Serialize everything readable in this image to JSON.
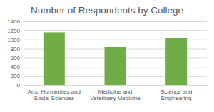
{
  "chart_data": {
    "type": "bar",
    "title": "Number of Respondents by College",
    "categories": [
      "Arts, Humanities and Social Sciences",
      "Medicine and Veterinary Medicine",
      "Science and Engineering"
    ],
    "values": [
      1160,
      840,
      1040
    ],
    "color": "#70ad47",
    "ylim": [
      0,
      1400
    ],
    "yticks": [
      0,
      200,
      400,
      600,
      800,
      1000,
      1200,
      1400
    ],
    "grid": true
  }
}
